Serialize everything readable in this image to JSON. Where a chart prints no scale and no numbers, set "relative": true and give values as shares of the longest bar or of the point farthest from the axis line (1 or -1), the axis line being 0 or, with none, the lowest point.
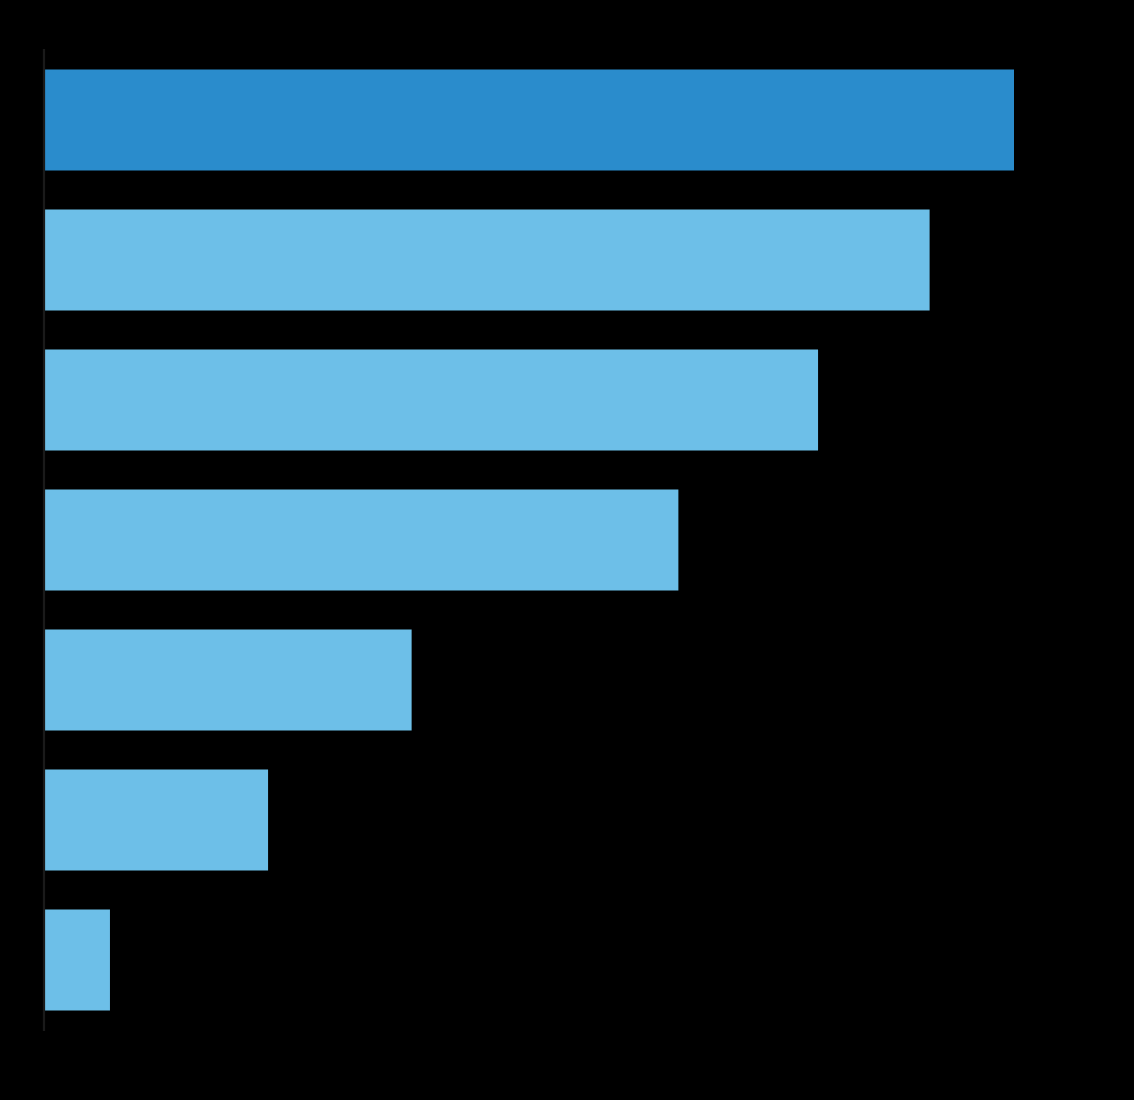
{
  "chart_data": {
    "type": "bar",
    "orientation": "horizontal",
    "relative": true,
    "categories": [
      null,
      null,
      null,
      null,
      null,
      null,
      null
    ],
    "values": [
      1,
      0.913,
      0.798,
      0.654,
      0.379,
      0.231,
      0.068
    ],
    "colors": [
      "#2a8ccc",
      "#6dbfe8",
      "#6dbfe8",
      "#6dbfe8",
      "#6dbfe8",
      "#6dbfe8",
      "#6dbfe8"
    ]
  }
}
